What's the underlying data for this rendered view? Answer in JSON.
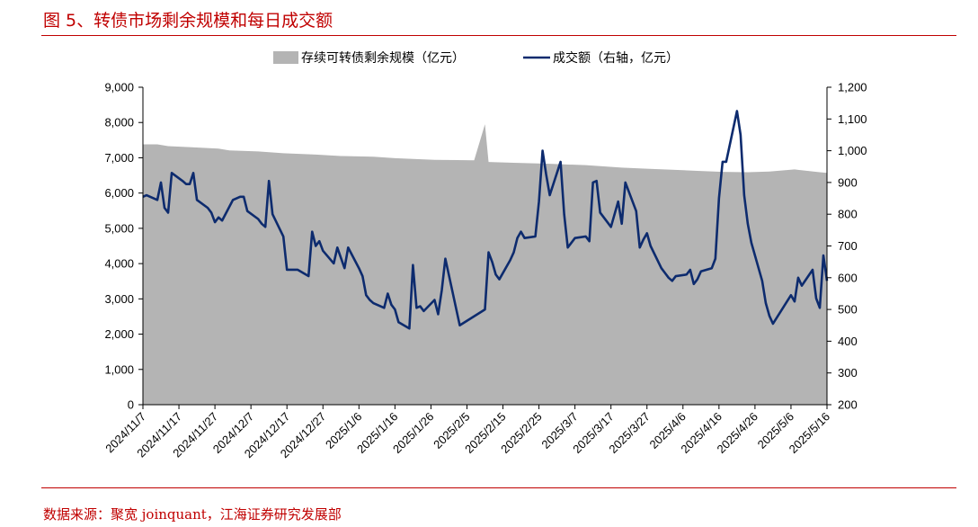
{
  "figure": {
    "title": "图 5、转债市场剩余规模和每日成交额",
    "source": "数据来源：聚宽 joinquant，江海证券研究发展部"
  },
  "chart_data": {
    "type": "area+line",
    "legend": [
      {
        "name": "存续可转债剩余规模（亿元）",
        "type": "area",
        "color": "#b4b4b4",
        "axis": "left"
      },
      {
        "name": "成交额（右轴，亿元）",
        "type": "line",
        "color": "#0d2b6e",
        "axis": "right"
      }
    ],
    "legend_position": "top",
    "grid": false,
    "x_axis": {
      "start": "2024-11-07",
      "end": "2025-05-16",
      "tick_labels": [
        "2024/11/7",
        "2024/11/17",
        "2024/11/27",
        "2024/12/7",
        "2024/12/17",
        "2024/12/27",
        "2025/1/6",
        "2025/1/16",
        "2025/1/26",
        "2025/2/5",
        "2025/2/15",
        "2025/2/25",
        "2025/3/7",
        "2025/3/17",
        "2025/3/27",
        "2025/4/6",
        "2025/4/16",
        "2025/4/26",
        "2025/5/6",
        "2025/5/16"
      ]
    },
    "y_left": {
      "min": 0,
      "max": 9000,
      "tick_labels": [
        "0",
        "1,000",
        "2,000",
        "3,000",
        "4,000",
        "5,000",
        "6,000",
        "7,000",
        "8,000",
        "9,000"
      ]
    },
    "y_right": {
      "min": 200,
      "max": 1200,
      "tick_labels": [
        "200",
        "300",
        "400",
        "500",
        "600",
        "700",
        "800",
        "900",
        "1,000",
        "1,100",
        "1,200"
      ]
    },
    "area_series": {
      "name": "存续可转债剩余规模（亿元）",
      "points": [
        [
          "2024-11-07",
          7380
        ],
        [
          "2024-11-11",
          7380
        ],
        [
          "2024-11-14",
          7330
        ],
        [
          "2024-11-20",
          7300
        ],
        [
          "2024-11-28",
          7260
        ],
        [
          "2024-12-01",
          7210
        ],
        [
          "2024-12-09",
          7180
        ],
        [
          "2024-12-16",
          7130
        ],
        [
          "2024-12-25",
          7090
        ],
        [
          "2025-01-01",
          7050
        ],
        [
          "2025-01-10",
          7030
        ],
        [
          "2025-01-16",
          6990
        ],
        [
          "2025-01-27",
          6940
        ],
        [
          "2025-02-07",
          6930
        ],
        [
          "2025-02-10",
          7950
        ],
        [
          "2025-02-11",
          6880
        ],
        [
          "2025-02-18",
          6860
        ],
        [
          "2025-02-28",
          6830
        ],
        [
          "2025-03-10",
          6790
        ],
        [
          "2025-03-20",
          6720
        ],
        [
          "2025-03-27",
          6690
        ],
        [
          "2025-04-03",
          6660
        ],
        [
          "2025-04-10",
          6630
        ],
        [
          "2025-04-17",
          6600
        ],
        [
          "2025-04-24",
          6590
        ],
        [
          "2025-04-30",
          6610
        ],
        [
          "2025-05-07",
          6670
        ],
        [
          "2025-05-14",
          6590
        ],
        [
          "2025-05-16",
          6570
        ]
      ]
    },
    "line_series": {
      "name": "成交额（右轴，亿元）",
      "points": [
        [
          "2024-11-07",
          855
        ],
        [
          "2024-11-08",
          860
        ],
        [
          "2024-11-11",
          845
        ],
        [
          "2024-11-12",
          900
        ],
        [
          "2024-11-13",
          820
        ],
        [
          "2024-11-14",
          805
        ],
        [
          "2024-11-15",
          930
        ],
        [
          "2024-11-18",
          905
        ],
        [
          "2024-11-19",
          895
        ],
        [
          "2024-11-20",
          895
        ],
        [
          "2024-11-21",
          930
        ],
        [
          "2024-11-22",
          845
        ],
        [
          "2024-11-25",
          820
        ],
        [
          "2024-11-26",
          805
        ],
        [
          "2024-11-27",
          775
        ],
        [
          "2024-11-28",
          790
        ],
        [
          "2024-11-29",
          780
        ],
        [
          "2024-12-02",
          845
        ],
        [
          "2024-12-03",
          850
        ],
        [
          "2024-12-04",
          855
        ],
        [
          "2024-12-05",
          855
        ],
        [
          "2024-12-06",
          810
        ],
        [
          "2024-12-09",
          785
        ],
        [
          "2024-12-10",
          770
        ],
        [
          "2024-12-11",
          760
        ],
        [
          "2024-12-12",
          905
        ],
        [
          "2024-12-13",
          800
        ],
        [
          "2024-12-16",
          730
        ],
        [
          "2024-12-17",
          625
        ],
        [
          "2024-12-18",
          625
        ],
        [
          "2024-12-19",
          625
        ],
        [
          "2024-12-20",
          625
        ],
        [
          "2024-12-23",
          605
        ],
        [
          "2024-12-24",
          745
        ],
        [
          "2024-12-25",
          700
        ],
        [
          "2024-12-26",
          715
        ],
        [
          "2024-12-27",
          685
        ],
        [
          "2024-12-30",
          645
        ],
        [
          "2024-12-31",
          695
        ],
        [
          "2025-01-02",
          630
        ],
        [
          "2025-01-03",
          695
        ],
        [
          "2025-01-06",
          630
        ],
        [
          "2025-01-07",
          605
        ],
        [
          "2025-01-08",
          545
        ],
        [
          "2025-01-09",
          530
        ],
        [
          "2025-01-10",
          520
        ],
        [
          "2025-01-13",
          505
        ],
        [
          "2025-01-14",
          550
        ],
        [
          "2025-01-15",
          515
        ],
        [
          "2025-01-16",
          500
        ],
        [
          "2025-01-17",
          460
        ],
        [
          "2025-01-20",
          440
        ],
        [
          "2025-01-21",
          640
        ],
        [
          "2025-01-22",
          505
        ],
        [
          "2025-01-23",
          510
        ],
        [
          "2025-01-24",
          495
        ],
        [
          "2025-01-27",
          530
        ],
        [
          "2025-01-28",
          485
        ],
        [
          "2025-01-29",
          560
        ],
        [
          "2025-01-30",
          660
        ],
        [
          "2025-02-03",
          450
        ],
        [
          "2025-02-10",
          500
        ],
        [
          "2025-02-11",
          680
        ],
        [
          "2025-02-12",
          650
        ],
        [
          "2025-02-13",
          610
        ],
        [
          "2025-02-14",
          595
        ],
        [
          "2025-02-17",
          655
        ],
        [
          "2025-02-18",
          680
        ],
        [
          "2025-02-19",
          725
        ],
        [
          "2025-02-20",
          745
        ],
        [
          "2025-02-21",
          725
        ],
        [
          "2025-02-24",
          730
        ],
        [
          "2025-02-25",
          840
        ],
        [
          "2025-02-26",
          1000
        ],
        [
          "2025-02-27",
          925
        ],
        [
          "2025-02-28",
          860
        ],
        [
          "2025-03-03",
          965
        ],
        [
          "2025-03-04",
          800
        ],
        [
          "2025-03-05",
          695
        ],
        [
          "2025-03-06",
          710
        ],
        [
          "2025-03-07",
          725
        ],
        [
          "2025-03-10",
          730
        ],
        [
          "2025-03-11",
          715
        ],
        [
          "2025-03-12",
          900
        ],
        [
          "2025-03-13",
          905
        ],
        [
          "2025-03-14",
          805
        ],
        [
          "2025-03-17",
          760
        ],
        [
          "2025-03-18",
          800
        ],
        [
          "2025-03-19",
          840
        ],
        [
          "2025-03-20",
          770
        ],
        [
          "2025-03-21",
          900
        ],
        [
          "2025-03-24",
          810
        ],
        [
          "2025-03-25",
          695
        ],
        [
          "2025-03-26",
          720
        ],
        [
          "2025-03-27",
          740
        ],
        [
          "2025-03-28",
          700
        ],
        [
          "2025-03-31",
          630
        ],
        [
          "2025-04-01",
          615
        ],
        [
          "2025-04-02",
          600
        ],
        [
          "2025-04-03",
          590
        ],
        [
          "2025-04-04",
          605
        ],
        [
          "2025-04-07",
          610
        ],
        [
          "2025-04-08",
          625
        ],
        [
          "2025-04-09",
          580
        ],
        [
          "2025-04-10",
          595
        ],
        [
          "2025-04-11",
          620
        ],
        [
          "2025-04-14",
          630
        ],
        [
          "2025-04-15",
          660
        ],
        [
          "2025-04-16",
          850
        ],
        [
          "2025-04-17",
          965
        ],
        [
          "2025-04-18",
          965
        ],
        [
          "2025-04-21",
          1125
        ],
        [
          "2025-04-22",
          1050
        ],
        [
          "2025-04-23",
          860
        ],
        [
          "2025-04-24",
          770
        ],
        [
          "2025-04-25",
          710
        ],
        [
          "2025-04-28",
          590
        ],
        [
          "2025-04-29",
          520
        ],
        [
          "2025-04-30",
          480
        ],
        [
          "2025-05-01",
          455
        ],
        [
          "2025-05-06",
          545
        ],
        [
          "2025-05-07",
          525
        ],
        [
          "2025-05-08",
          600
        ],
        [
          "2025-05-09",
          575
        ],
        [
          "2025-05-12",
          625
        ],
        [
          "2025-05-13",
          535
        ],
        [
          "2025-05-14",
          505
        ],
        [
          "2025-05-15",
          670
        ],
        [
          "2025-05-16",
          590
        ]
      ]
    }
  }
}
